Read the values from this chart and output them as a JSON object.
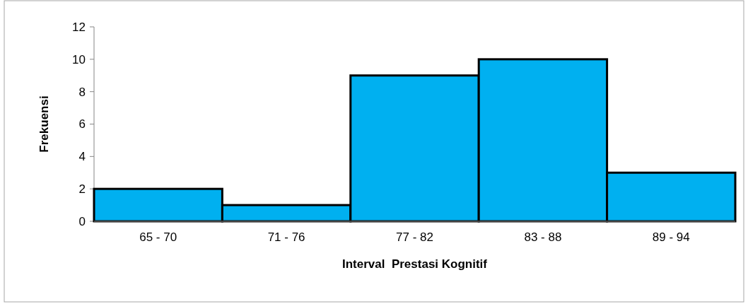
{
  "chart_data": {
    "type": "bar",
    "xlabel": "Interval  Prestasi Kognitif",
    "ylabel": "Frekuensi",
    "categories": [
      "65 - 70",
      "71 - 76",
      "77 - 82",
      "83 - 88",
      "89 - 94"
    ],
    "values": [
      2,
      1,
      9,
      10,
      3
    ],
    "color": "#00b0f0",
    "ylim": [
      0,
      12
    ],
    "yticks": [
      0,
      2,
      4,
      6,
      8,
      10,
      12
    ]
  }
}
